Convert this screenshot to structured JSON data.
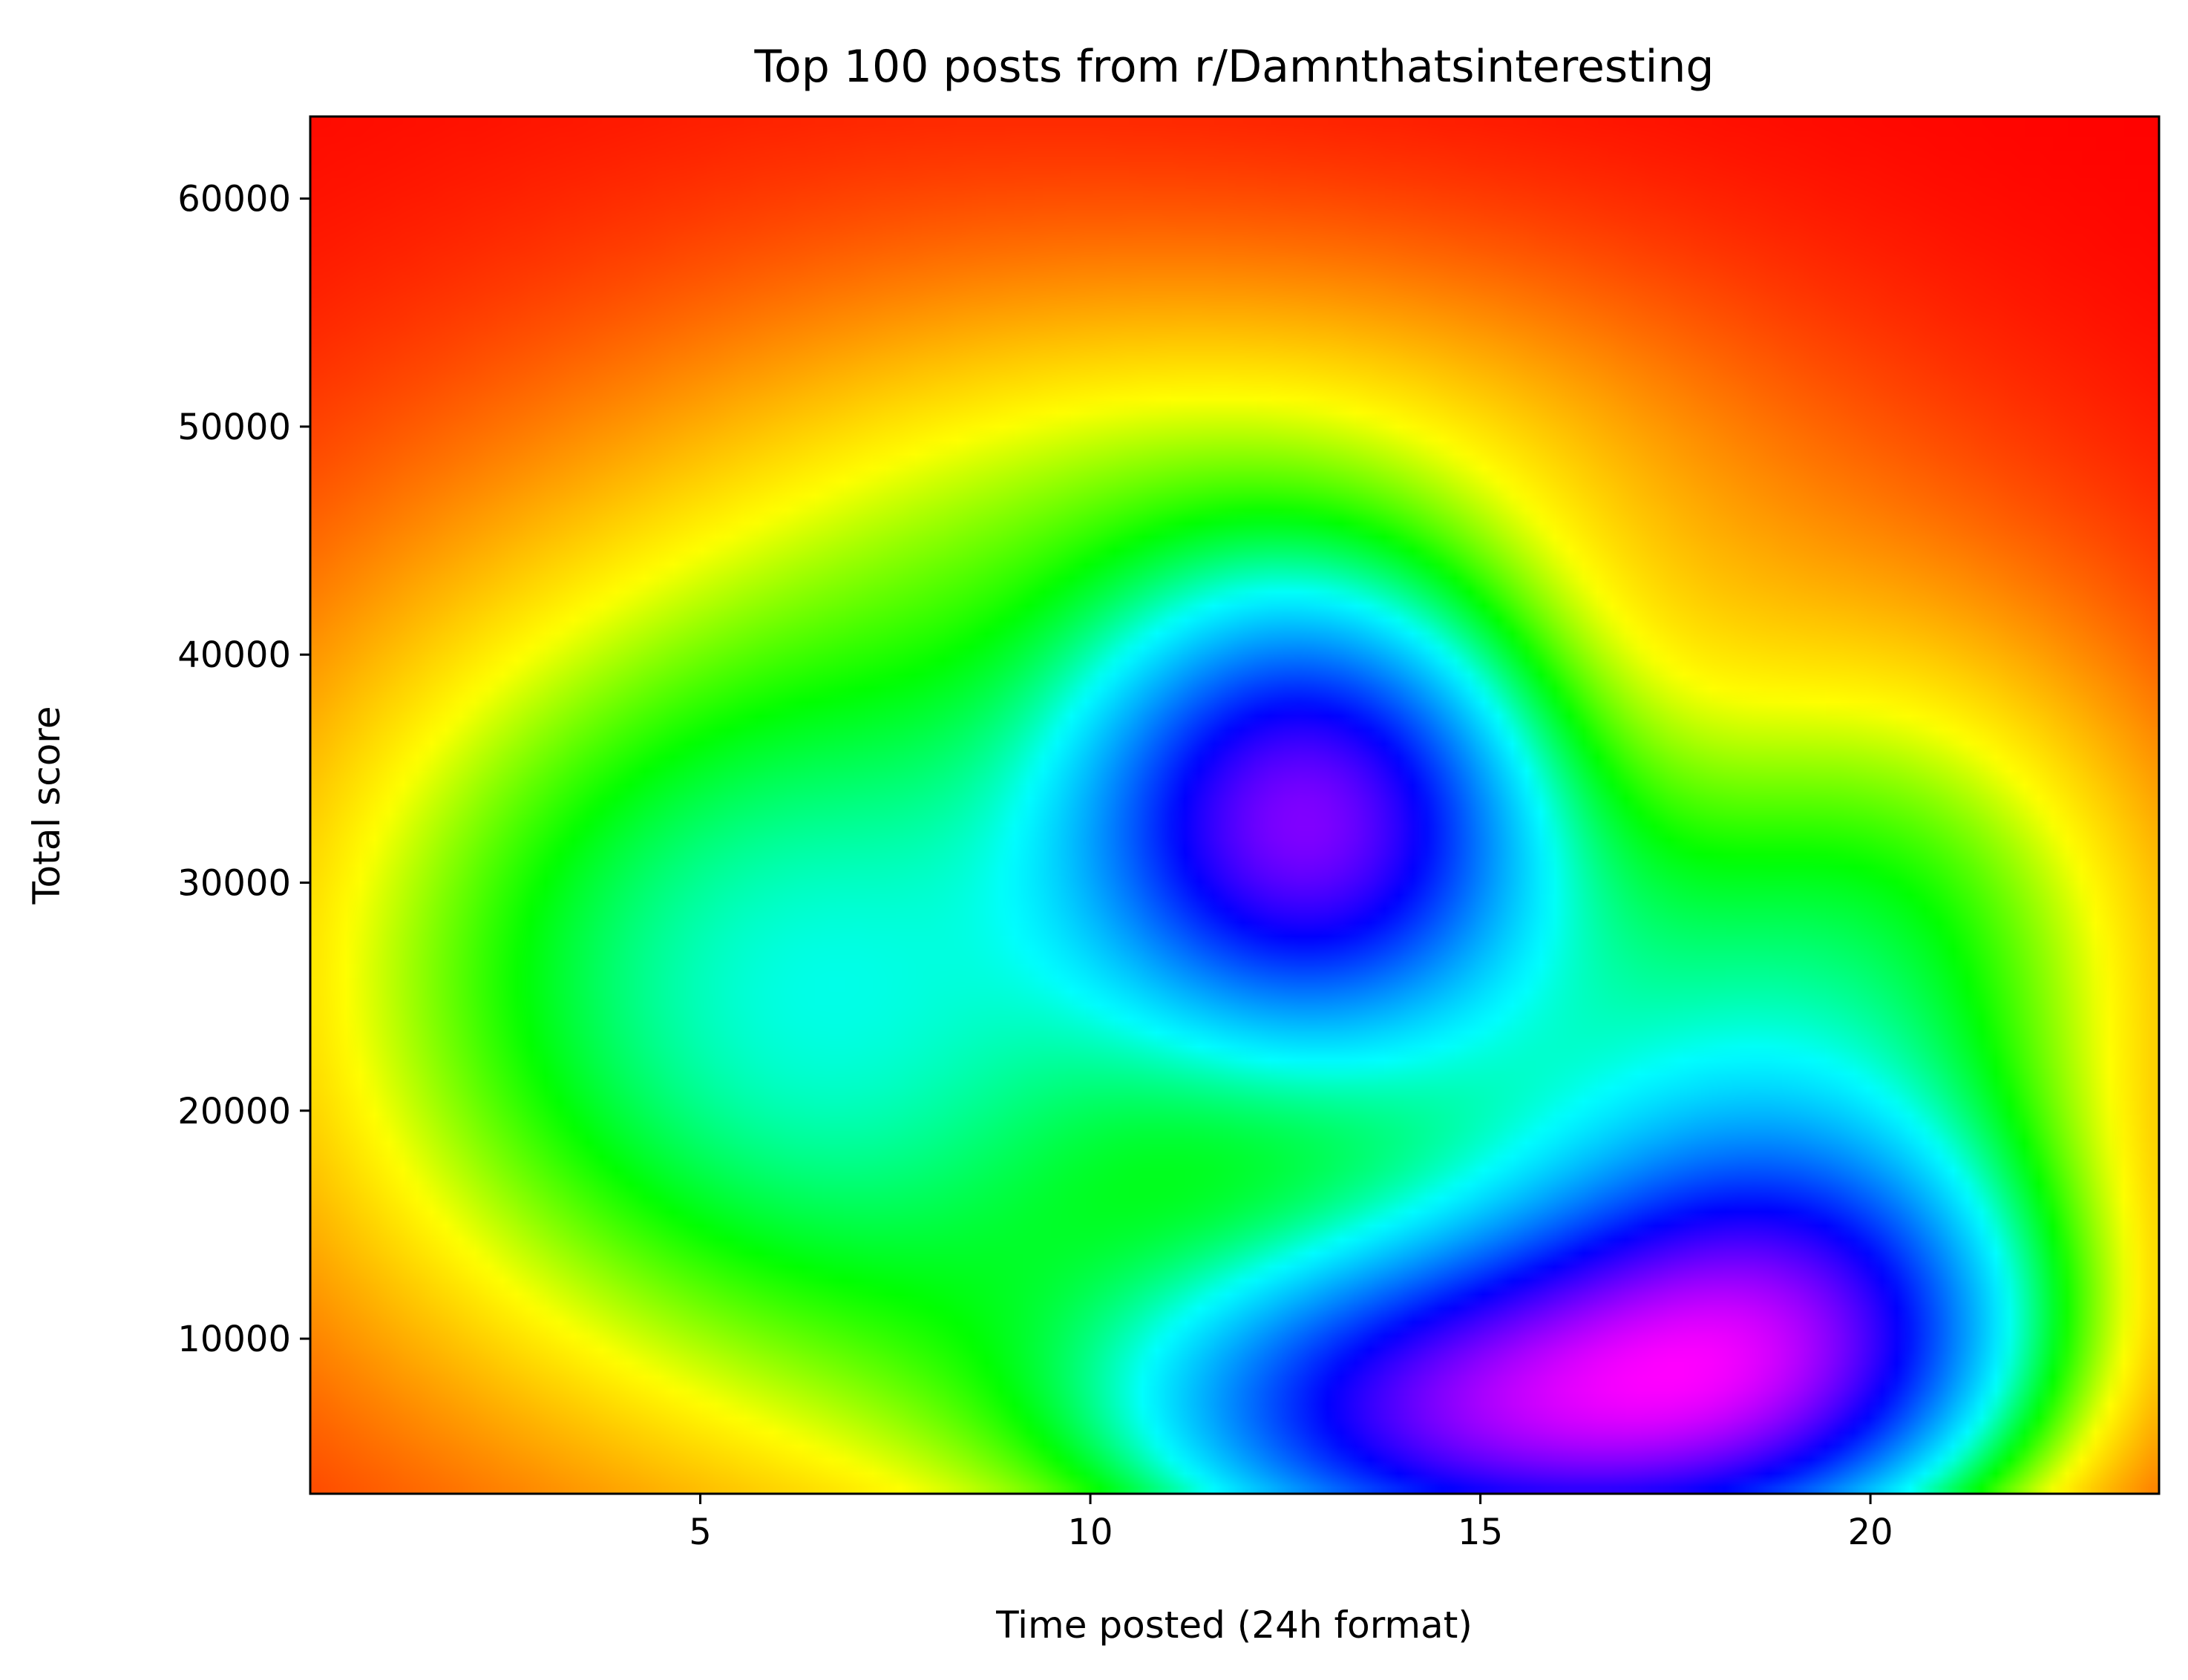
{
  "chart_data": {
    "type": "heatmap",
    "title": "Top 100 posts from r/Damnthatsinteresting",
    "xlabel": "Time posted (24h format)",
    "ylabel": "Total score",
    "xlim": [
      0,
      23.7
    ],
    "ylim": [
      3200,
      63600
    ],
    "xticks": [
      5,
      10,
      15,
      20
    ],
    "yticks": [
      10000,
      20000,
      30000,
      40000,
      50000,
      60000
    ],
    "x_tick_labels": [
      "5",
      "10",
      "15",
      "20"
    ],
    "y_tick_labels": [
      "10000",
      "20000",
      "30000",
      "40000",
      "50000",
      "60000"
    ],
    "colormap": "hsv",
    "colormap_stops": [
      "#ff0000",
      "#ff8000",
      "#ffff00",
      "#00ff00",
      "#00ffff",
      "#0080ff",
      "#0000ff",
      "#8000ff",
      "#ff00ff"
    ],
    "grid": false,
    "legend": false,
    "density_peaks": [
      {
        "x": 12.8,
        "y": 33000,
        "level": "high"
      },
      {
        "x": 15.5,
        "y": 6500,
        "level": "highest"
      },
      {
        "x": 19.0,
        "y": 10500,
        "level": "high"
      }
    ]
  }
}
